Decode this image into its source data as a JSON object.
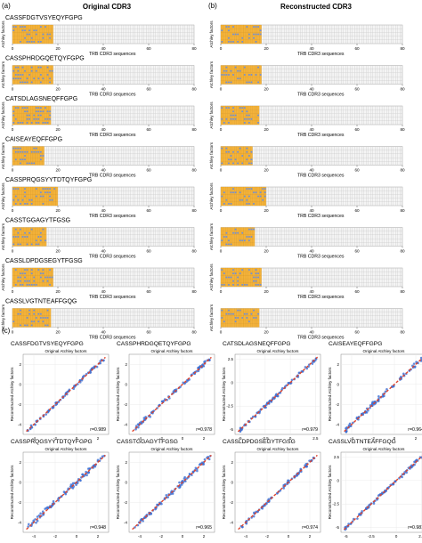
{
  "panel_labels": {
    "a": "(a)",
    "b": "(b)",
    "c": "(c)"
  },
  "column_titles": {
    "original": "Original CDR3",
    "reconstructed": "Reconstructed CDR3"
  },
  "heatmap_xlabel": "TRB CDR3 sequences",
  "heatmap_ylabel": "Atchley factors",
  "colors": {
    "heat_fill": "#f3b23a",
    "heat_mark": "#6f8fd6",
    "grid": "#c8c8c8",
    "scatter_point": "#3b6fd4",
    "fit_line": "#e0432b"
  },
  "sequences": [
    "CASSFDGTVSYEQYFGPG",
    "CASSPHRDGQETQYFGPG",
    "CATSDLAGSNEQFFGPG",
    "CAISEAYEQFFGPG",
    "CASSPRQGSYYTDTQYFGPG",
    "CASSTGGAGYTFGSG",
    "CASSLDPDGSEGYTFGSG",
    "CASSLVGTNTEAFFGQG"
  ],
  "chart_data": [
    {
      "type": "heatmap",
      "panel": "a",
      "xlabel": "TRB CDR3 sequences",
      "ylabel": "Atchley factors",
      "x_ticks": [
        0,
        20,
        40,
        60,
        80
      ],
      "xlim": [
        0,
        80
      ],
      "rows": 5,
      "filled_columns": [
        18,
        18,
        17,
        14,
        20,
        15,
        18,
        17
      ]
    },
    {
      "type": "heatmap",
      "panel": "b",
      "xlabel": "TRB CDR3 sequences",
      "ylabel": "Atchley factors",
      "x_ticks": [
        0,
        20,
        40,
        60,
        80
      ],
      "xlim": [
        0,
        80
      ],
      "rows": 5,
      "filled_columns": [
        18,
        18,
        17,
        14,
        20,
        15,
        18,
        17
      ]
    },
    {
      "type": "scatter",
      "panel": "c",
      "title": "CASSFDGTVSYEQYFGPG",
      "xlabel": "Original Atchley factors",
      "ylabel": "Reconstructed Atchley factors",
      "annotation": "r=0.989",
      "r": 0.989,
      "x_ticks": [
        -4,
        -2,
        0,
        2
      ],
      "y_ticks": [
        -4,
        -2,
        0,
        2
      ],
      "xlim": [
        -5,
        3
      ],
      "ylim": [
        -5,
        3
      ]
    },
    {
      "type": "scatter",
      "panel": "c",
      "title": "CASSPHRDGQETQYFGPG",
      "xlabel": "Original Atchley factors",
      "ylabel": "Reconstructed Atchley factors",
      "annotation": "r=0.978",
      "r": 0.978,
      "x_ticks": [
        -4,
        -2,
        0,
        2
      ],
      "y_ticks": [
        -4,
        -2,
        0,
        2
      ],
      "xlim": [
        -5,
        3
      ],
      "ylim": [
        -5,
        3
      ]
    },
    {
      "type": "scatter",
      "panel": "c",
      "title": "CATSDLAGSNEQFFGPG",
      "xlabel": "Original Atchley factors",
      "ylabel": "Reconstructed Atchley factors",
      "annotation": "r=0.979",
      "r": 0.979,
      "x_ticks": [
        -5.0,
        -2.5,
        0.0,
        2.5
      ],
      "y_ticks": [
        -5.0,
        -2.5,
        0.0,
        2.5
      ],
      "xlim": [
        -5.5,
        3
      ],
      "ylim": [
        -5.5,
        3
      ]
    },
    {
      "type": "scatter",
      "panel": "c",
      "title": "CAISEAYEQFFGPG",
      "xlabel": "Original Atchley factors",
      "ylabel": "Reconstructed Atchley factors",
      "annotation": "r=0.964",
      "r": 0.964,
      "x_ticks": [
        -4,
        -2,
        0,
        2
      ],
      "y_ticks": [
        -4,
        -2,
        0,
        2
      ],
      "xlim": [
        -5,
        3
      ],
      "ylim": [
        -5,
        3
      ]
    },
    {
      "type": "scatter",
      "panel": "c",
      "title": "CASSPRQGSYYTDTQYFGPG",
      "xlabel": "Original Atchley factors",
      "ylabel": "Reconstructed Atchley factors",
      "annotation": "r=0.948",
      "r": 0.948,
      "x_ticks": [
        -4,
        -2,
        0,
        2
      ],
      "y_ticks": [
        -4,
        -2,
        0,
        2
      ],
      "xlim": [
        -5,
        3
      ],
      "ylim": [
        -5,
        3
      ]
    },
    {
      "type": "scatter",
      "panel": "c",
      "title": "CASSTGGAGYTFGSG",
      "xlabel": "Original Atchley factors",
      "ylabel": "Reconstructed Atchley factors",
      "annotation": "r=0.965",
      "r": 0.965,
      "x_ticks": [
        -4,
        -2,
        0,
        2
      ],
      "y_ticks": [
        -4,
        -2,
        0,
        2
      ],
      "xlim": [
        -5,
        3
      ],
      "ylim": [
        -5,
        3
      ]
    },
    {
      "type": "scatter",
      "panel": "c",
      "title": "CASSLDPDGSEGYTFGSG",
      "xlabel": "Original Atchley factors",
      "ylabel": "Reconstructed Atchley factors",
      "annotation": "r=0.974",
      "r": 0.974,
      "x_ticks": [
        -4,
        -2,
        0,
        2
      ],
      "y_ticks": [
        -4,
        -2,
        0,
        2
      ],
      "xlim": [
        -5,
        3
      ],
      "ylim": [
        -5,
        3
      ]
    },
    {
      "type": "scatter",
      "panel": "c",
      "title": "CASSLVGTNTEAFFGQG",
      "xlabel": "Original Atchley factors",
      "ylabel": "Reconstructed Atchley factors",
      "annotation": "r=0.981",
      "r": 0.981,
      "x_ticks": [
        -5.0,
        -2.5,
        0.0,
        2.5
      ],
      "y_ticks": [
        -5.0,
        -2.5,
        0.0,
        2.5
      ],
      "xlim": [
        -5.5,
        3
      ],
      "ylim": [
        -5.5,
        3
      ]
    }
  ]
}
